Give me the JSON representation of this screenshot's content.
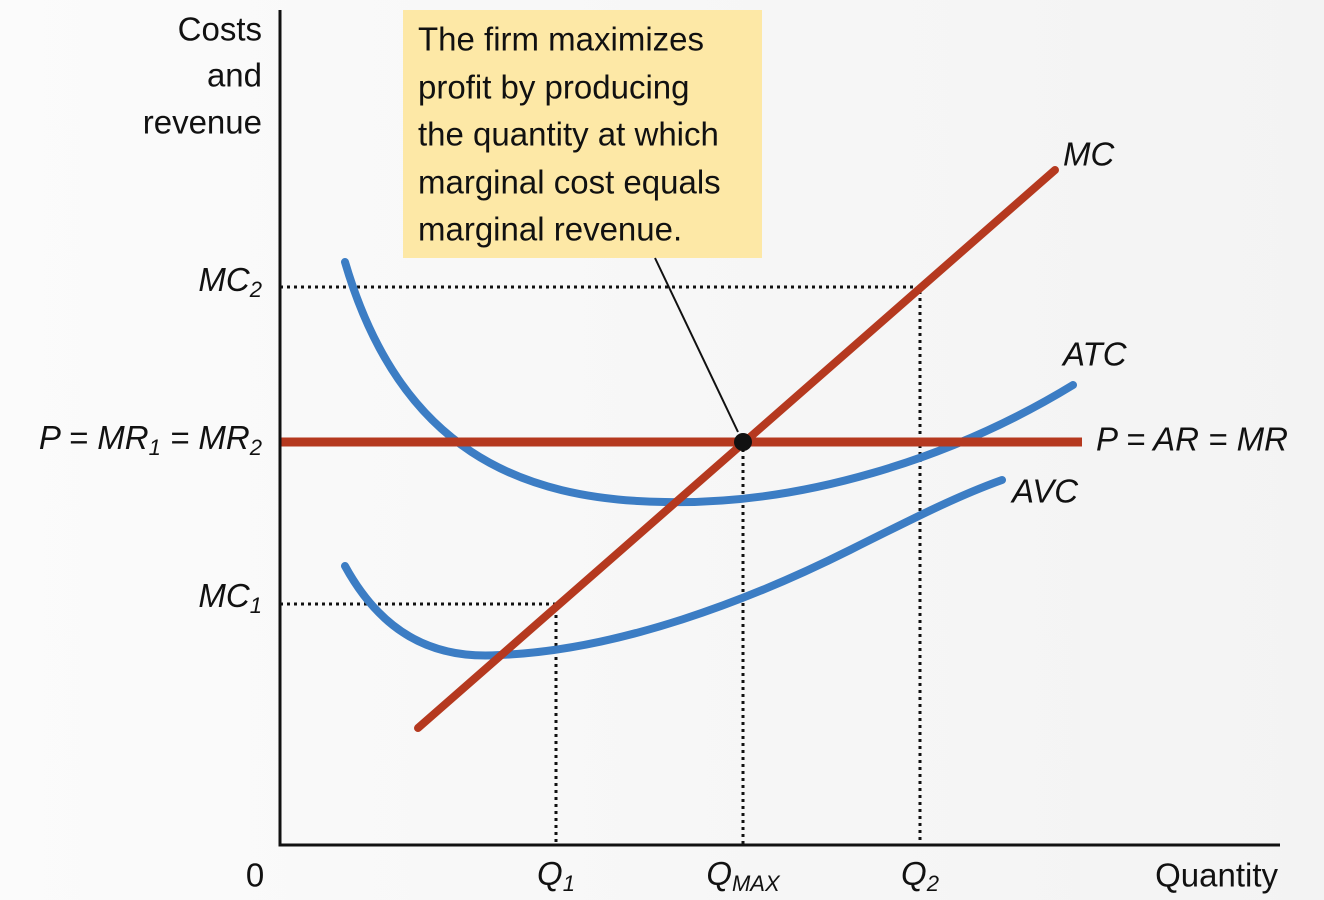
{
  "y_axis_label": [
    "Costs",
    "and",
    "revenue"
  ],
  "x_axis_label": "Quantity",
  "origin": "0",
  "annotation": [
    "The firm maximizes",
    "profit by producing",
    "the quantity at which",
    "marginal cost equals",
    "marginal revenue."
  ],
  "curves": {
    "mc": "MC",
    "atc": "ATC",
    "avc": "AVC",
    "demand": "P = AR = MR"
  },
  "y_labels": {
    "mc2": [
      "MC",
      "2"
    ],
    "price": [
      "P = MR",
      "1",
      " = MR",
      "2"
    ],
    "mc1": [
      "MC",
      "1"
    ]
  },
  "x_labels": {
    "q1": [
      "Q",
      "1"
    ],
    "qmax": [
      "Q",
      "MAX"
    ],
    "q2": [
      "Q",
      "2"
    ]
  }
}
